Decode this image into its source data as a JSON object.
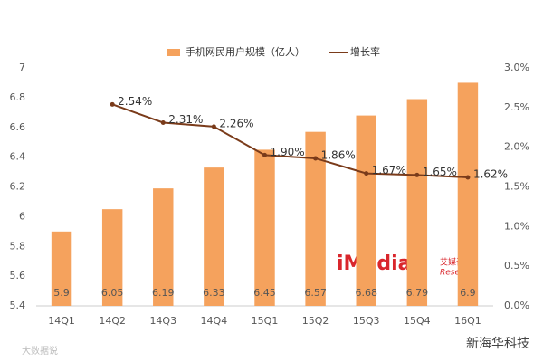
{
  "chart_data": {
    "type": "bar-line",
    "categories": [
      "14Q1",
      "14Q2",
      "14Q3",
      "14Q4",
      "15Q1",
      "15Q2",
      "15Q3",
      "15Q4",
      "16Q1"
    ],
    "series": [
      {
        "name": "手机网民用户规模（亿人）",
        "type": "bar",
        "color": "#f5a25d",
        "values": [
          5.9,
          6.05,
          6.19,
          6.33,
          6.45,
          6.57,
          6.68,
          6.79,
          6.9
        ]
      },
      {
        "name": "增长率",
        "type": "line",
        "axis": "y2",
        "color": "#7a3b1a",
        "values": [
          null,
          2.54,
          2.31,
          2.26,
          1.9,
          1.86,
          1.67,
          1.65,
          1.62
        ],
        "value_labels": [
          null,
          "2.54%",
          "2.31%",
          "2.26%",
          "1.90%",
          "1.86%",
          "1.67%",
          "1.65%",
          "1.62%"
        ]
      }
    ],
    "ylim": [
      5.4,
      7
    ],
    "yticks": [
      5.4,
      5.6,
      5.8,
      6,
      6.2,
      6.4,
      6.6,
      6.8,
      7
    ],
    "y2lim": [
      0,
      3
    ],
    "y2ticks": [
      {
        "value": 0,
        "label": "0.0%"
      },
      {
        "value": 0.5,
        "label": "0.5%"
      },
      {
        "value": 1,
        "label": "1.0%"
      },
      {
        "value": 1.5,
        "label": "1.5%"
      },
      {
        "value": 2,
        "label": "2.0%"
      },
      {
        "value": 2.5,
        "label": "2.5%"
      },
      {
        "value": 3,
        "label": "3.0%"
      }
    ],
    "legend": "top",
    "grid": false,
    "annotations": [
      "iMedia",
      "艾媒咨询",
      "Research",
      "大数据说",
      "新海华科技"
    ]
  }
}
